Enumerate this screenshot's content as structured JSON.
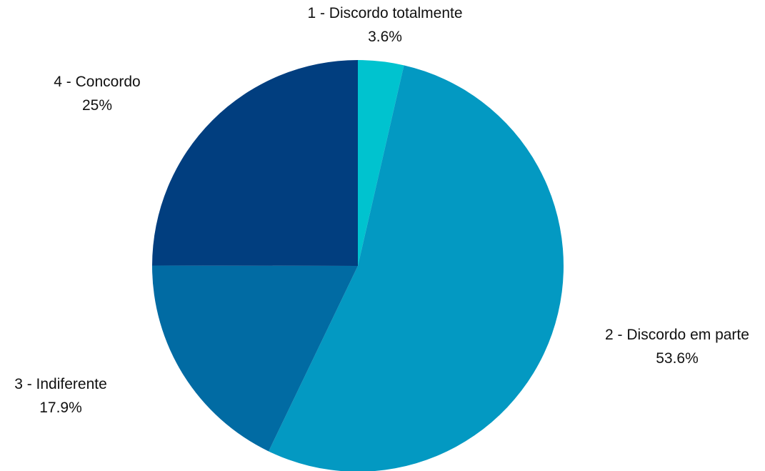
{
  "chart_data": {
    "type": "pie",
    "start_angle_deg": 0,
    "direction": "clockwise",
    "slices": [
      {
        "label": "1 - Discordo totalmente",
        "value": 3.6,
        "value_label": "3.6%",
        "color": "#00c3cf"
      },
      {
        "label": "2 - Discordo em parte",
        "value": 53.6,
        "value_label": "53.6%",
        "color": "#0399c2"
      },
      {
        "label": "3 - Indiferente",
        "value": 17.9,
        "value_label": "17.9%",
        "color": "#016ba3"
      },
      {
        "label": "4 - Concordo",
        "value": 25,
        "value_label": "25%",
        "color": "#013e7f"
      }
    ]
  }
}
